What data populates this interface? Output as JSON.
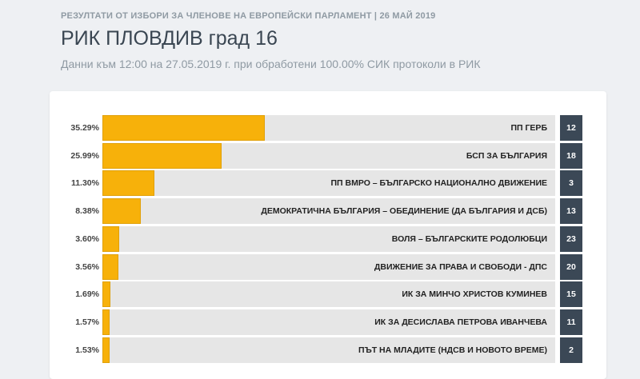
{
  "header": {
    "kicker": "РЕЗУЛТАТИ ОТ ИЗБОРИ ЗА ЧЛЕНОВЕ НА ЕВРОПЕЙСКИ ПАРЛАМЕНТ | 26 МАЙ 2019",
    "title": "РИК ПЛОВДИВ град 16",
    "subtitle": "Данни към 12:00 на 27.05.2019 г. при обработени 100.00% СИК протоколи в РИК"
  },
  "colors": {
    "bar": "#f7b10a",
    "track": "#e6e6e6",
    "badge": "#3b4856"
  },
  "results": [
    {
      "pct_label": "35.29%",
      "value": 35.29,
      "party": "ПП ГЕРБ",
      "number": "12"
    },
    {
      "pct_label": "25.99%",
      "value": 25.99,
      "party": "БСП ЗА БЪЛГАРИЯ",
      "number": "18"
    },
    {
      "pct_label": "11.30%",
      "value": 11.3,
      "party": "ПП ВМРО – БЪЛГАРСКО НАЦИОНАЛНО ДВИЖЕНИЕ",
      "number": "3"
    },
    {
      "pct_label": "8.38%",
      "value": 8.38,
      "party": "ДЕМОКРАТИЧНА БЪЛГАРИЯ – ОБЕДИНЕНИЕ (ДА БЪЛГАРИЯ И ДСБ)",
      "number": "13"
    },
    {
      "pct_label": "3.60%",
      "value": 3.6,
      "party": "ВОЛЯ – БЪЛГАРСКИТЕ РОДОЛЮБЦИ",
      "number": "23"
    },
    {
      "pct_label": "3.56%",
      "value": 3.56,
      "party": "ДВИЖЕНИЕ ЗА ПРАВА И СВОБОДИ - ДПС",
      "number": "20"
    },
    {
      "pct_label": "1.69%",
      "value": 1.69,
      "party": "ИК ЗА МИНЧО ХРИСТОВ КУМИНЕВ",
      "number": "15"
    },
    {
      "pct_label": "1.57%",
      "value": 1.57,
      "party": "ИК ЗА ДЕСИСЛАВА ПЕТРОВА ИВАНЧЕВА",
      "number": "11"
    },
    {
      "pct_label": "1.53%",
      "value": 1.53,
      "party": "ПЪТ НА МЛАДИТЕ (НДСВ И НОВОТО ВРЕМЕ)",
      "number": "2"
    }
  ]
}
